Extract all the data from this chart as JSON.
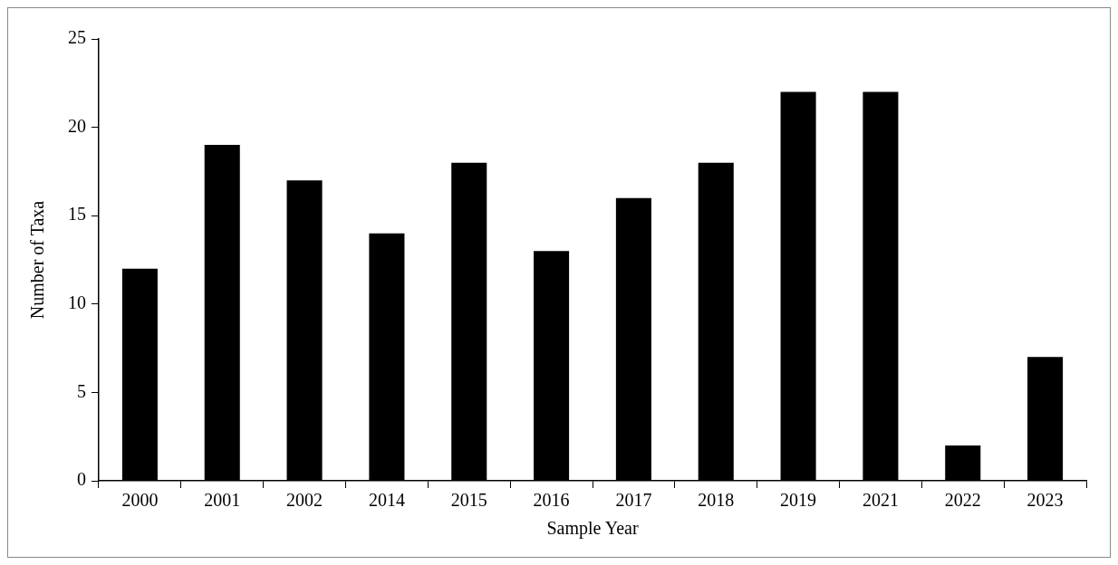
{
  "chart_data": {
    "type": "bar",
    "xlabel": "Sample Year",
    "ylabel": "Number of Taxa",
    "categories": [
      "2000",
      "2001",
      "2002",
      "2014",
      "2015",
      "2016",
      "2017",
      "2018",
      "2019",
      "2021",
      "2022",
      "2023"
    ],
    "values": [
      12,
      19,
      17,
      14,
      18,
      13,
      16,
      18,
      22,
      22,
      2,
      7
    ],
    "color": "#000000",
    "ylim": [
      0,
      25
    ],
    "yticks": [
      0,
      5,
      10,
      15,
      20,
      25
    ],
    "grid": false,
    "legend": false
  }
}
